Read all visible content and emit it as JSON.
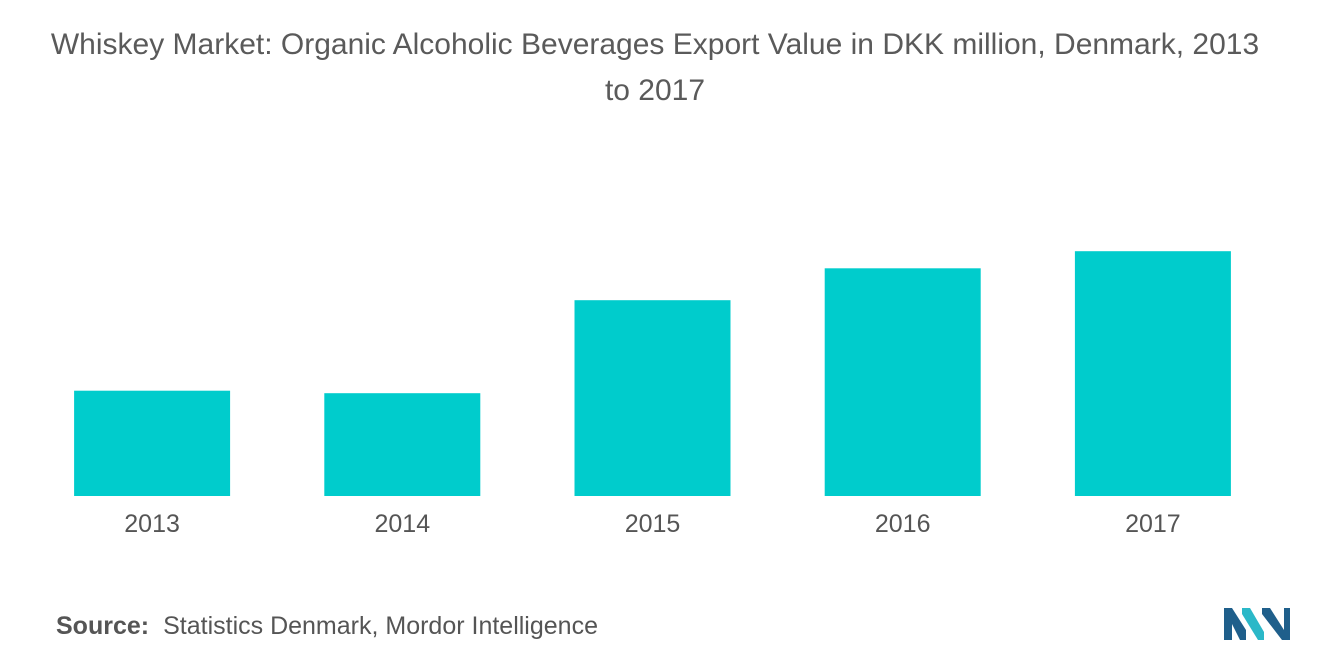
{
  "source": {
    "label": "Source:",
    "text": "Statistics Denmark, Mordor Intelligence"
  },
  "logo": {
    "icon": "mordor-intelligence-logo-icon",
    "colors": [
      "#1f5f8b",
      "#2bb8c8"
    ]
  },
  "chart_data": {
    "type": "bar",
    "title_lines": [
      "Whiskey Market: Organic Alcoholic Beverages Export Value in DKK million, Denmark, 2013",
      "to 2017"
    ],
    "categories": [
      "2013",
      "2014",
      "2015",
      "2016",
      "2017"
    ],
    "values": [
      4.3,
      4.2,
      8.0,
      9.3,
      10.0
    ],
    "xlabel": "",
    "ylabel": "",
    "ylim": [
      0,
      12.5
    ],
    "y_axis_visible": false,
    "grid": false,
    "legend": "none",
    "bar_color": "#00cccc",
    "label_color": "#555555",
    "title_color": "#5a5a5a"
  }
}
